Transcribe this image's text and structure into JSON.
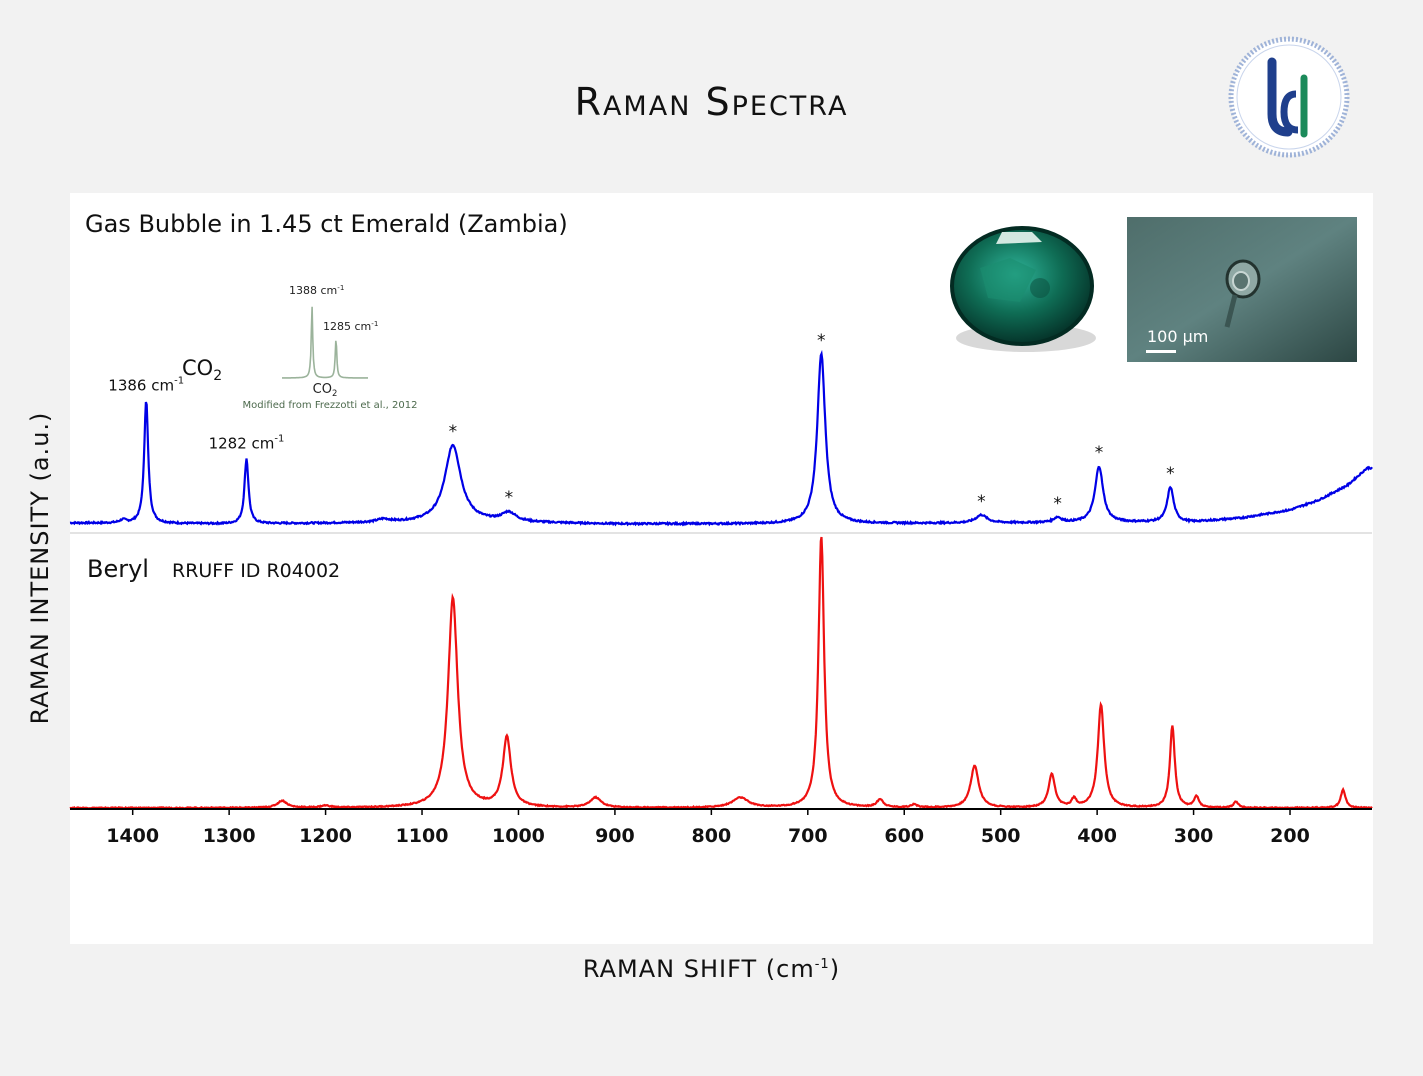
{
  "header": {
    "title": "Raman Spectra"
  },
  "logo": {
    "letters": "UG",
    "colors": {
      "blue": "#1f3f8c",
      "green": "#1b8a5a"
    }
  },
  "axes": {
    "ylabel": "RAMAN INTENSITY (a.u.)",
    "xlabel_main": "RAMAN SHIFT (cm",
    "xlabel_sup": "-1",
    "xlabel_end": ")"
  },
  "photos": {
    "scale_label": "100 μm"
  },
  "inset": {
    "peak1": "1388 cm",
    "peak2": "1285 cm",
    "sup": "-1",
    "species": "CO",
    "sub": "2",
    "credit": "Modified from Frezzotti et al., 2012"
  },
  "chart_data": {
    "type": "line",
    "x_axis": {
      "reversed": true,
      "xlim": [
        1465,
        115
      ],
      "ticks": [
        1400,
        1300,
        1200,
        1100,
        1000,
        900,
        800,
        700,
        600,
        500,
        400,
        300,
        200
      ]
    },
    "series": [
      {
        "name": "Gas Bubble in 1.45 ct Emerald (Zambia)",
        "color": "#0000e6",
        "baseline": [
          [
            1465,
            7
          ],
          [
            1300,
            6
          ],
          [
            1150,
            7
          ],
          [
            1050,
            8
          ],
          [
            900,
            6
          ],
          [
            700,
            6
          ],
          [
            500,
            7
          ],
          [
            300,
            8
          ],
          [
            250,
            12
          ],
          [
            200,
            20
          ],
          [
            170,
            30
          ],
          [
            140,
            45
          ],
          [
            120,
            62
          ]
        ],
        "peaks": [
          {
            "x": 1386,
            "height": 123,
            "width": 2.5
          },
          {
            "x": 1282,
            "height": 65,
            "width": 2.5
          },
          {
            "x": 1068,
            "height": 77,
            "width": 10
          },
          {
            "x": 1010,
            "height": 9,
            "width": 9
          },
          {
            "x": 686,
            "height": 170,
            "width": 5
          },
          {
            "x": 520,
            "height": 8,
            "width": 7
          },
          {
            "x": 441,
            "height": 5,
            "width": 5
          },
          {
            "x": 398,
            "height": 56,
            "width": 5
          },
          {
            "x": 324,
            "height": 35,
            "width": 4
          },
          {
            "x": 1410,
            "height": 3,
            "width": 4
          },
          {
            "x": 1140,
            "height": 3,
            "width": 8
          }
        ],
        "annotations": [
          {
            "x": 1386,
            "text": "1386 cm",
            "sup": "-1"
          },
          {
            "x": 1282,
            "text": "1282 cm",
            "sup": "-1"
          },
          {
            "x": 1360,
            "text": "CO",
            "sub": "2"
          },
          {
            "x": 1068,
            "text": "*"
          },
          {
            "x": 1010,
            "text": "*"
          },
          {
            "x": 686,
            "text": "*"
          },
          {
            "x": 520,
            "text": "*"
          },
          {
            "x": 441,
            "text": "*"
          },
          {
            "x": 398,
            "text": "*"
          },
          {
            "x": 324,
            "text": "*"
          }
        ]
      },
      {
        "name": "Beryl",
        "subtitle": "RRUFF ID R04002",
        "color": "#ee1111",
        "baseline": [
          [
            1465,
            0
          ],
          [
            115,
            0
          ]
        ],
        "peaks": [
          {
            "x": 1068,
            "height": 210,
            "width": 6
          },
          {
            "x": 1012,
            "height": 70,
            "width": 5
          },
          {
            "x": 686,
            "height": 272,
            "width": 3.5
          },
          {
            "x": 527,
            "height": 42,
            "width": 5
          },
          {
            "x": 447,
            "height": 33,
            "width": 4
          },
          {
            "x": 424,
            "height": 8,
            "width": 3
          },
          {
            "x": 396,
            "height": 103,
            "width": 4
          },
          {
            "x": 322,
            "height": 82,
            "width": 3
          },
          {
            "x": 297,
            "height": 11,
            "width": 3
          },
          {
            "x": 1245,
            "height": 7,
            "width": 6
          },
          {
            "x": 1200,
            "height": 2,
            "width": 6
          },
          {
            "x": 920,
            "height": 10,
            "width": 7
          },
          {
            "x": 770,
            "height": 10,
            "width": 10
          },
          {
            "x": 625,
            "height": 8,
            "width": 4
          },
          {
            "x": 590,
            "height": 3,
            "width": 4
          },
          {
            "x": 256,
            "height": 6,
            "width": 3
          },
          {
            "x": 145,
            "height": 18,
            "width": 3
          }
        ]
      }
    ]
  }
}
